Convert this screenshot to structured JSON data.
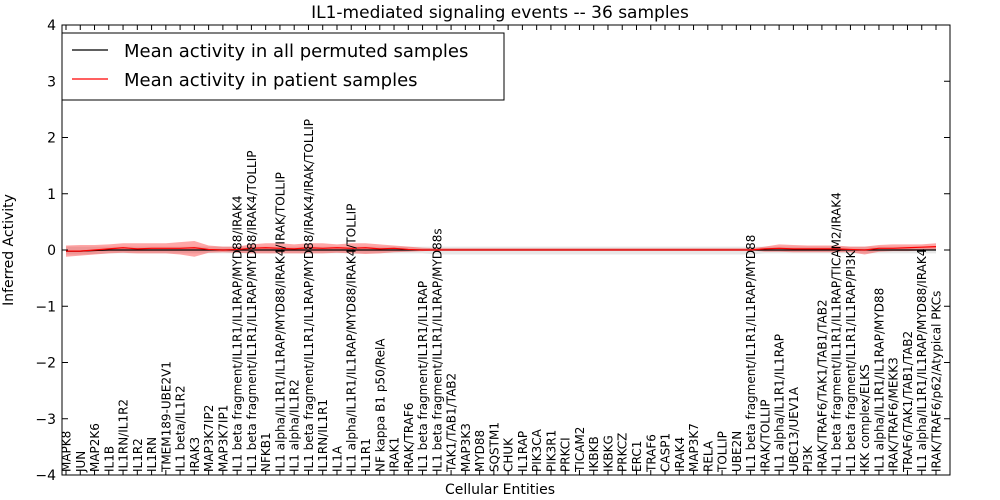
{
  "chart_data": {
    "type": "line",
    "title": "IL1-mediated signaling events -- 36 samples",
    "xlabel": "Cellular Entities",
    "ylabel": "Inferred Activity",
    "ylim": [
      -4,
      4
    ],
    "yticks": [
      -4,
      -3,
      -2,
      -1,
      0,
      1,
      2,
      3,
      4
    ],
    "grid": false,
    "legend_position": "top-left",
    "categories": [
      "MAPK8",
      "JUN",
      "MAP2K6",
      "IL1B",
      "IL1RN/IL1R2",
      "IL1R2",
      "IL1RN",
      "TMEM189-UBE2V1",
      "IL1 beta/IL1R2",
      "IRAK3",
      "MAP3K7IP2",
      "MAP3K7IP1",
      "IL1 beta fragment/IL1R1/IL1RAP/MYD88/IRAK4",
      "IL1 beta fragment/IL1R1/IL1RAP/MYD88/IRAK4/TOLLIP",
      "NFKB1",
      "IL1 alpha/IL1R1/IL1RAP/MYD88/IRAK4/IRAK/TOLLIP",
      "IL1 alpha/IL1R2",
      "IL1 beta fragment/IL1R1/IL1RAP/MYD88/IRAK4/IRAK/TOLLIP",
      "IL1RN/IL1R1",
      "IL1A",
      "IL1 alpha/IL1R1/IL1RAP/MYD88/IRAK4/TOLLIP",
      "IL1R1",
      "NF kappa B1 p50/RelA",
      "IRAK1",
      "IRAK/TRAF6",
      "IL1 beta fragment/IL1R1/IL1RAP",
      "IL1 beta fragment/IL1R1/IL1RAP/MYD88s",
      "TAK1/TAB1/TAB2",
      "MAP3K3",
      "MYD88",
      "SQSTM1",
      "CHUK",
      "IL1RAP",
      "PIK3CA",
      "PIK3R1",
      "PRKCI",
      "TICAM2",
      "IKBKB",
      "IKBKG",
      "PRKCZ",
      "ERC1",
      "TRAF6",
      "CASP1",
      "IRAK4",
      "MAP3K7",
      "RELA",
      "TOLLIP",
      "UBE2N",
      "IL1 beta fragment/IL1R1/IL1RAP/MYD88",
      "IRAK/TOLLIP",
      "IL1 alpha/IL1R1/IL1RAP",
      "UBC13/UEV1A",
      "PI3K",
      "IRAK/TRAF6/TAK1/TAB1/TAB2",
      "IL1 beta fragment/IL1R1/IL1RAP/TICAM2/IRAK4",
      "IL1 beta fragment/IL1R1/IL1RAP/PI3K",
      "IKK complex/ELKS",
      "IL1 alpha/IL1R1/IL1RAP/MYD88",
      "IRAK/TRAF6/MEKK3",
      "TRAF6/TAK1/TAB1/TAB2",
      "IL1 alpha/IL1R1/IL1RAP/MYD88/IRAK4",
      "IRAK/TRAF6/p62/Atypical PKCs"
    ],
    "series": [
      {
        "name": "Mean activity in all permuted samples",
        "color": "#000000",
        "values": [
          -0.02,
          -0.02,
          -0.01,
          0.0,
          0.0,
          0.0,
          0.0,
          0.0,
          0.0,
          0.0,
          0.0,
          0.0,
          0.0,
          0.0,
          0.0,
          0.0,
          0.0,
          0.0,
          0.0,
          0.0,
          0.0,
          0.0,
          0.0,
          0.0,
          0.0,
          0.0,
          0.0,
          0.0,
          0.0,
          0.0,
          0.0,
          0.0,
          0.0,
          0.0,
          0.0,
          0.0,
          0.0,
          0.0,
          0.0,
          0.0,
          0.0,
          0.0,
          0.0,
          0.0,
          0.0,
          0.0,
          0.0,
          0.0,
          0.0,
          0.0,
          0.0,
          0.0,
          0.0,
          0.0,
          0.0,
          0.0,
          0.0,
          0.0,
          0.0,
          0.0,
          0.0,
          0.0
        ],
        "lower": [
          -0.08,
          -0.08,
          -0.07,
          -0.06,
          -0.06,
          -0.06,
          -0.06,
          -0.06,
          -0.06,
          -0.06,
          -0.06,
          -0.06,
          -0.06,
          -0.06,
          -0.06,
          -0.06,
          -0.06,
          -0.06,
          -0.06,
          -0.06,
          -0.06,
          -0.06,
          -0.06,
          -0.06,
          -0.06,
          -0.06,
          -0.08,
          -0.08,
          -0.08,
          -0.08,
          -0.08,
          -0.08,
          -0.08,
          -0.08,
          -0.08,
          -0.08,
          -0.08,
          -0.08,
          -0.08,
          -0.08,
          -0.08,
          -0.08,
          -0.08,
          -0.08,
          -0.08,
          -0.08,
          -0.08,
          -0.08,
          -0.08,
          -0.06,
          -0.06,
          -0.06,
          -0.06,
          -0.06,
          -0.06,
          -0.06,
          -0.06,
          -0.06,
          -0.06,
          -0.06,
          -0.06,
          -0.06
        ],
        "upper": [
          0.06,
          0.06,
          0.06,
          0.06,
          0.06,
          0.06,
          0.06,
          0.06,
          0.06,
          0.06,
          0.06,
          0.06,
          0.06,
          0.06,
          0.06,
          0.06,
          0.06,
          0.06,
          0.06,
          0.06,
          0.06,
          0.06,
          0.06,
          0.06,
          0.06,
          0.06,
          0.06,
          0.06,
          0.06,
          0.06,
          0.06,
          0.06,
          0.06,
          0.06,
          0.06,
          0.06,
          0.06,
          0.06,
          0.06,
          0.06,
          0.06,
          0.06,
          0.06,
          0.06,
          0.06,
          0.06,
          0.06,
          0.06,
          0.06,
          0.06,
          0.06,
          0.06,
          0.06,
          0.06,
          0.06,
          0.06,
          0.06,
          0.06,
          0.06,
          0.06,
          0.06,
          0.06
        ]
      },
      {
        "name": "Mean activity in patient samples",
        "color": "#ff0000",
        "values": [
          -0.02,
          -0.02,
          0.0,
          0.02,
          0.04,
          0.02,
          0.03,
          0.03,
          0.03,
          0.04,
          0.01,
          0.0,
          0.01,
          0.03,
          0.04,
          0.03,
          0.02,
          0.04,
          0.03,
          0.04,
          0.03,
          0.04,
          0.02,
          0.03,
          0.01,
          0.0,
          0.0,
          0.0,
          0.0,
          0.0,
          0.0,
          0.0,
          0.0,
          0.0,
          0.0,
          0.0,
          0.0,
          0.0,
          0.0,
          0.0,
          0.0,
          0.0,
          0.0,
          0.0,
          0.0,
          0.0,
          0.0,
          0.0,
          0.0,
          0.02,
          0.03,
          0.02,
          0.02,
          0.02,
          0.02,
          0.01,
          0.0,
          0.03,
          0.03,
          0.04,
          0.05,
          0.06
        ],
        "lower": [
          -0.12,
          -0.1,
          -0.08,
          -0.06,
          -0.05,
          -0.06,
          -0.06,
          -0.06,
          -0.08,
          -0.12,
          -0.05,
          -0.04,
          -0.05,
          -0.06,
          -0.06,
          -0.06,
          -0.06,
          -0.06,
          -0.06,
          -0.05,
          -0.06,
          -0.07,
          -0.06,
          -0.04,
          -0.03,
          -0.02,
          -0.01,
          -0.01,
          -0.01,
          -0.01,
          -0.01,
          -0.01,
          -0.01,
          -0.01,
          -0.01,
          -0.01,
          -0.01,
          -0.01,
          -0.01,
          -0.01,
          -0.01,
          -0.01,
          -0.01,
          -0.01,
          -0.01,
          -0.01,
          -0.01,
          -0.01,
          -0.01,
          -0.03,
          -0.03,
          -0.04,
          -0.04,
          -0.04,
          -0.04,
          -0.04,
          -0.08,
          -0.03,
          -0.02,
          -0.02,
          -0.01,
          0.0
        ],
        "upper": [
          0.08,
          0.09,
          0.09,
          0.1,
          0.12,
          0.12,
          0.12,
          0.12,
          0.14,
          0.16,
          0.08,
          0.06,
          0.06,
          0.1,
          0.12,
          0.12,
          0.1,
          0.12,
          0.12,
          0.1,
          0.12,
          0.12,
          0.1,
          0.08,
          0.06,
          0.04,
          0.03,
          0.03,
          0.03,
          0.03,
          0.03,
          0.03,
          0.03,
          0.03,
          0.03,
          0.03,
          0.03,
          0.03,
          0.03,
          0.03,
          0.03,
          0.03,
          0.03,
          0.03,
          0.03,
          0.03,
          0.03,
          0.03,
          0.03,
          0.06,
          0.1,
          0.09,
          0.08,
          0.08,
          0.08,
          0.06,
          0.06,
          0.09,
          0.1,
          0.1,
          0.1,
          0.12
        ]
      }
    ]
  }
}
